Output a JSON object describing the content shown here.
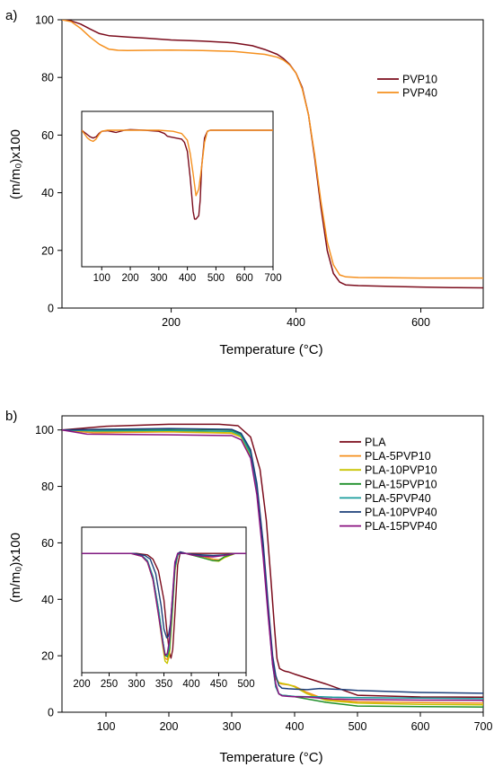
{
  "chart_data": [
    {
      "panel_label": "a)",
      "type": "line",
      "xlabel": "Temperature (°C)",
      "ylabel": "(m/m₀)x100",
      "xlim": [
        25,
        700
      ],
      "ylim": [
        0,
        100
      ],
      "xticks": [
        200,
        400,
        600
      ],
      "yticks": [
        0,
        20,
        40,
        60,
        80,
        100
      ],
      "legend_position": "right",
      "series": [
        {
          "name": "PVP10",
          "color": "#7b0c1c",
          "x": [
            25,
            40,
            55,
            70,
            85,
            100,
            130,
            160,
            200,
            250,
            300,
            330,
            350,
            370,
            380,
            390,
            400,
            410,
            420,
            430,
            440,
            450,
            460,
            470,
            480,
            500,
            550,
            600,
            650,
            700
          ],
          "y": [
            100,
            99.6,
            98.5,
            96.8,
            95.2,
            94.5,
            94,
            93.6,
            93,
            92.6,
            92,
            91,
            89.7,
            88,
            86.5,
            84.5,
            81.5,
            76.5,
            67,
            52,
            35,
            20,
            12,
            9,
            8,
            7.8,
            7.5,
            7.3,
            7.1,
            7
          ]
        },
        {
          "name": "PVP40",
          "color": "#f5901e",
          "x": [
            25,
            40,
            55,
            70,
            85,
            100,
            115,
            130,
            160,
            200,
            250,
            300,
            350,
            370,
            380,
            390,
            400,
            410,
            420,
            430,
            440,
            450,
            460,
            470,
            480,
            500,
            550,
            600,
            650,
            700
          ],
          "y": [
            100,
            99.3,
            97,
            94,
            91.5,
            89.8,
            89.4,
            89.3,
            89.4,
            89.5,
            89.3,
            89,
            88,
            87,
            86,
            84.3,
            81.5,
            76,
            67,
            53,
            37,
            23,
            15,
            11.5,
            10.8,
            10.6,
            10.5,
            10.4,
            10.4,
            10.4
          ]
        }
      ],
      "inset": {
        "xlim": [
          30,
          700
        ],
        "xticks": [
          100,
          200,
          300,
          400,
          500,
          600,
          700
        ],
        "series": [
          {
            "name": "PVP10",
            "color": "#7b0c1c",
            "x": [
              30,
              50,
              60,
              70,
              80,
              90,
              100,
              120,
              150,
              180,
              200,
              250,
              300,
              320,
              330,
              340,
              360,
              380,
              390,
              400,
              410,
              420,
              425,
              430,
              440,
              445,
              450,
              460,
              470,
              480,
              500,
              550,
              600,
              650,
              700
            ],
            "y": [
              61.5,
              59.5,
              58.5,
              58,
              58.5,
              60,
              61,
              61.3,
              60.5,
              61.5,
              61.8,
              61.5,
              61,
              60,
              58.8,
              58.5,
              58,
              57.5,
              56,
              52,
              40,
              25,
              21.5,
              21.5,
              23,
              30,
              45,
              58,
              61,
              61.5,
              61.5,
              61.5,
              61.5,
              61.5,
              61.5
            ]
          },
          {
            "name": "PVP40",
            "color": "#f5901e",
            "x": [
              30,
              50,
              60,
              70,
              80,
              90,
              100,
              120,
              150,
              200,
              250,
              300,
              350,
              380,
              400,
              410,
              420,
              430,
              440,
              450,
              460,
              470,
              480,
              500,
              550,
              600,
              700
            ],
            "y": [
              61.5,
              58,
              57,
              56.5,
              57.5,
              59.5,
              61,
              61.5,
              61.5,
              61.5,
              61.5,
              61.5,
              61,
              60,
              57,
              51,
              42,
              32,
              35,
              45,
              56,
              61,
              61.5,
              61.5,
              61.5,
              61.5,
              61.5
            ]
          }
        ]
      }
    },
    {
      "panel_label": "b)",
      "type": "line",
      "xlabel": "Temperature (°C)",
      "ylabel": "(m/m₀)x100",
      "xlim": [
        30,
        700
      ],
      "ylim": [
        0,
        105
      ],
      "xticks": [
        100,
        200,
        300,
        400,
        500,
        600,
        700
      ],
      "yticks": [
        0,
        20,
        40,
        60,
        80,
        100
      ],
      "legend_position": "right",
      "series": [
        {
          "name": "PLA",
          "color": "#7b0c1c",
          "x": [
            30,
            100,
            200,
            280,
            310,
            330,
            345,
            355,
            362,
            368,
            372,
            376,
            380,
            385,
            390,
            400,
            450,
            500,
            600,
            700
          ],
          "y": [
            100,
            101.3,
            102,
            102,
            101.5,
            97.5,
            86,
            68,
            48,
            30,
            19,
            15.5,
            15,
            14.5,
            14.3,
            13.5,
            10,
            6,
            5.4,
            5.3
          ]
        },
        {
          "name": "PLA-5PVP10",
          "color": "#f5901e",
          "x": [
            30,
            80,
            200,
            300,
            315,
            330,
            340,
            350,
            358,
            365,
            370,
            375,
            380,
            390,
            400,
            420,
            450,
            500,
            600,
            700
          ],
          "y": [
            100,
            99,
            99.3,
            98.8,
            97.5,
            91,
            78,
            57,
            36,
            19,
            12,
            10.3,
            10,
            9.7,
            9.2,
            7,
            4.5,
            3.7,
            3.4,
            3.2
          ]
        },
        {
          "name": "PLA-10PVP10",
          "color": "#c9c400",
          "x": [
            30,
            80,
            200,
            300,
            315,
            330,
            340,
            350,
            358,
            365,
            370,
            375,
            380,
            390,
            400,
            420,
            450,
            500,
            600,
            700
          ],
          "y": [
            100,
            99.5,
            99.5,
            99,
            97.5,
            91,
            78,
            57,
            36,
            19,
            12,
            10.5,
            10.2,
            9.8,
            9,
            6.5,
            4.2,
            3.2,
            2.8,
            2.6
          ]
        },
        {
          "name": "PLA-15PVP10",
          "color": "#1f8f2a",
          "x": [
            30,
            80,
            200,
            300,
            315,
            330,
            340,
            350,
            358,
            365,
            370,
            375,
            380,
            390,
            400,
            450,
            500,
            600,
            700
          ],
          "y": [
            100,
            99.8,
            100.3,
            100,
            98.5,
            92,
            80,
            58,
            36,
            18,
            9,
            6.5,
            6,
            5.8,
            5.5,
            3.5,
            2.2,
            2,
            1.8
          ]
        },
        {
          "name": "PLA-5PVP40",
          "color": "#1a9c9c",
          "x": [
            30,
            80,
            200,
            300,
            315,
            330,
            340,
            350,
            358,
            365,
            370,
            375,
            380,
            390,
            400,
            420,
            440,
            460,
            500,
            600,
            700
          ],
          "y": [
            100,
            99.7,
            99.8,
            99.5,
            98,
            91.5,
            79,
            57,
            35,
            17,
            9,
            6.5,
            6,
            5.8,
            5.6,
            5.5,
            5.5,
            5.3,
            5.2,
            5,
            4.8
          ]
        },
        {
          "name": "PLA-10PVP40",
          "color": "#1c3f7a",
          "x": [
            30,
            80,
            200,
            300,
            315,
            330,
            340,
            350,
            358,
            365,
            370,
            375,
            380,
            390,
            400,
            420,
            440,
            460,
            480,
            500,
            600,
            700
          ],
          "y": [
            100,
            100.2,
            100.5,
            100.2,
            98.8,
            93,
            81,
            60,
            38,
            20,
            13,
            9.5,
            8.5,
            8.3,
            8.2,
            8,
            8.4,
            8.2,
            8,
            7.7,
            7,
            6.7
          ]
        },
        {
          "name": "PLA-15PVP40",
          "color": "#8a1280",
          "x": [
            30,
            70,
            200,
            300,
            315,
            330,
            340,
            350,
            358,
            365,
            370,
            375,
            380,
            390,
            400,
            420,
            440,
            460,
            500,
            600,
            700
          ],
          "y": [
            100,
            98.5,
            98.3,
            98,
            96.5,
            90,
            77,
            55,
            34,
            17,
            10,
            6.5,
            5.8,
            5.6,
            5.5,
            5.4,
            5,
            4.7,
            4.5,
            4.3,
            4.2
          ]
        }
      ],
      "inset": {
        "xlim": [
          200,
          500
        ],
        "xticks": [
          200,
          250,
          300,
          350,
          400,
          450,
          500
        ],
        "series": [
          {
            "name": "PLA",
            "color": "#7b0c1c",
            "x": [
              200,
              300,
              320,
              330,
              340,
              350,
              355,
              360,
              363,
              366,
              370,
              375,
              380,
              390,
              400,
              450,
              500
            ],
            "y": [
              56,
              56,
              55.5,
              54,
              50,
              40,
              30,
              22,
              20,
              23,
              35,
              52,
              56.5,
              56,
              56,
              56,
              56
            ]
          },
          {
            "name": "PLA-5PVP10",
            "color": "#f5901e",
            "x": [
              200,
              290,
              310,
              320,
              330,
              340,
              348,
              352,
              356,
              360,
              365,
              370,
              375,
              380,
              390,
              400,
              420,
              440,
              450,
              460,
              480,
              500
            ],
            "y": [
              56,
              56,
              55,
              53,
              47,
              36,
              25,
              20,
              19.5,
              22,
              35,
              50,
              55.5,
              56,
              56,
              55.5,
              55,
              54,
              53.8,
              54.5,
              56,
              56
            ]
          },
          {
            "name": "PLA-10PVP10",
            "color": "#c9c400",
            "x": [
              200,
              290,
              310,
              320,
              330,
              340,
              348,
              352,
              356,
              360,
              365,
              370,
              375,
              380,
              390,
              400,
              420,
              440,
              450,
              460,
              480,
              500
            ],
            "y": [
              56,
              56,
              55,
              53,
              47,
              35,
              24,
              19,
              18.2,
              21,
              34,
              50,
              55.5,
              56,
              56,
              55.5,
              54.5,
              53.5,
              53.3,
              54.5,
              56,
              56
            ]
          },
          {
            "name": "PLA-15PVP10",
            "color": "#1f8f2a",
            "x": [
              200,
              290,
              310,
              320,
              330,
              340,
              348,
              352,
              356,
              360,
              365,
              370,
              375,
              380,
              390,
              400,
              420,
              440,
              450,
              460,
              480,
              500
            ],
            "y": [
              56,
              56,
              55.2,
              53.5,
              48,
              37,
              26,
              21,
              20.5,
              23,
              36,
              51,
              55.5,
              56,
              56,
              55.5,
              54.5,
              53.5,
              53.5,
              54.8,
              56,
              56
            ]
          },
          {
            "name": "PLA-5PVP40",
            "color": "#1a9c9c",
            "x": [
              200,
              290,
              310,
              320,
              330,
              340,
              348,
              352,
              356,
              360,
              365,
              370,
              375,
              380,
              390,
              400,
              420,
              440,
              460,
              480,
              500
            ],
            "y": [
              56,
              56,
              55.2,
              53.5,
              48,
              37,
              26,
              21.5,
              21,
              24,
              37,
              51,
              55.5,
              56,
              56,
              55.7,
              55.3,
              55,
              55.5,
              56,
              56
            ]
          },
          {
            "name": "PLA-10PVP40",
            "color": "#1c3f7a",
            "x": [
              200,
              295,
              315,
              325,
              335,
              345,
              350,
              355,
              358,
              362,
              366,
              370,
              375,
              380,
              390,
              400,
              420,
              440,
              460,
              480,
              500
            ],
            "y": [
              56,
              56,
              55.3,
              54,
              49,
              38,
              30,
              27,
              27.5,
              32,
              42,
              52,
              56,
              56.5,
              56,
              55.7,
              55.5,
              55.3,
              55.5,
              56,
              56
            ]
          },
          {
            "name": "PLA-15PVP40",
            "color": "#8a1280",
            "x": [
              200,
              290,
              310,
              320,
              330,
              340,
              348,
              352,
              356,
              360,
              365,
              370,
              375,
              380,
              390,
              400,
              420,
              440,
              460,
              480,
              500
            ],
            "y": [
              56,
              56,
              55,
              53,
              47,
              35,
              25,
              21,
              21.5,
              26,
              40,
              53,
              56,
              56,
              56,
              55.5,
              55,
              54.8,
              55.3,
              56,
              56
            ]
          }
        ]
      }
    }
  ]
}
